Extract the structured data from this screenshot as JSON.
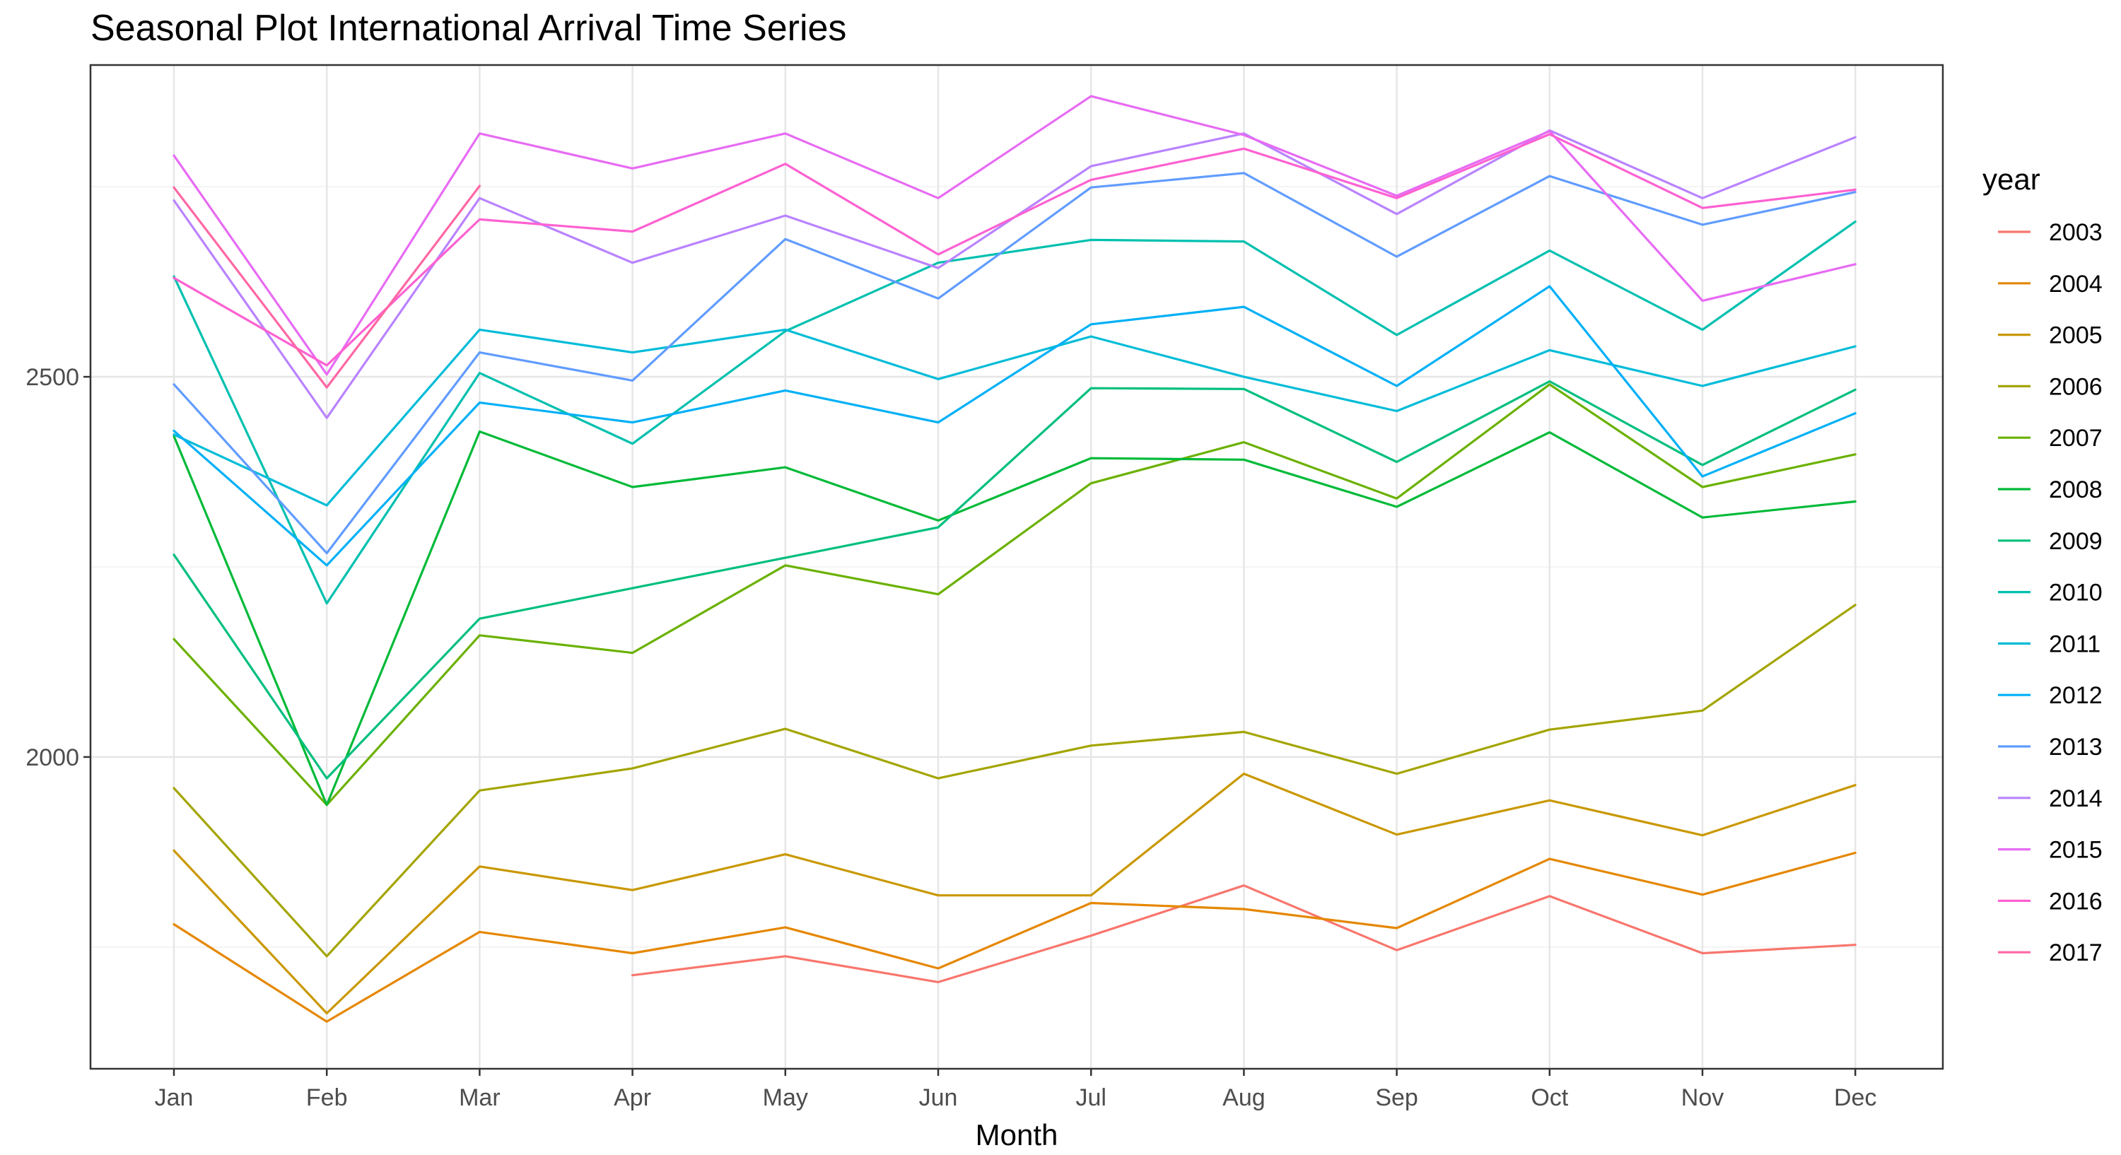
{
  "chart_data": {
    "type": "line",
    "title": "Seasonal Plot International Arrival Time Series",
    "xlabel": "Month",
    "ylabel": "",
    "categories": [
      "Jan",
      "Feb",
      "Mar",
      "Apr",
      "May",
      "Jun",
      "Jul",
      "Aug",
      "Sep",
      "Oct",
      "Nov",
      "Dec"
    ],
    "ylim": [
      1590,
      2910
    ],
    "yticks": [
      2000,
      2500
    ],
    "ygrid_minor": [
      1750,
      2250,
      2750
    ],
    "grid": true,
    "legend_title": "year",
    "legend_position": "right",
    "series": [
      {
        "name": "2003",
        "color": "#F8766D",
        "values": [
          null,
          null,
          null,
          1713,
          1738,
          1704,
          1765,
          1831,
          1746,
          1817,
          1742,
          1753
        ]
      },
      {
        "name": "2004",
        "color": "#E58700",
        "values": [
          1780,
          1652,
          1770,
          1742,
          1776,
          1722,
          1808,
          1800,
          1775,
          1866,
          1819,
          1874
        ]
      },
      {
        "name": "2005",
        "color": "#C99800",
        "values": [
          1877,
          1663,
          1856,
          1825,
          1872,
          1818,
          1818,
          1978,
          1898,
          1943,
          1897,
          1963
        ]
      },
      {
        "name": "2006",
        "color": "#A3A500",
        "values": [
          1959,
          1738,
          1956,
          1985,
          2037,
          1972,
          2015,
          2033,
          1978,
          2036,
          2061,
          2200
        ]
      },
      {
        "name": "2007",
        "color": "#6BB100",
        "values": [
          2155,
          1937,
          2160,
          2137,
          2252,
          2214,
          2360,
          2414,
          2340,
          2490,
          2355,
          2398
        ]
      },
      {
        "name": "2008",
        "color": "#00BA38",
        "values": [
          2422,
          1937,
          2428,
          2355,
          2381,
          2311,
          2393,
          2391,
          2329,
          2427,
          2315,
          2336
        ]
      },
      {
        "name": "2009",
        "color": "#00BF7D",
        "values": [
          2266,
          1972,
          2182,
          2222,
          2262,
          2302,
          2485,
          2484,
          2388,
          2494,
          2384,
          2483
        ]
      },
      {
        "name": "2010",
        "color": "#00C0AF",
        "values": [
          2632,
          2202,
          2505,
          2412,
          2560,
          2650,
          2680,
          2678,
          2555,
          2666,
          2562,
          2704
        ]
      },
      {
        "name": "2011",
        "color": "#00BCD8",
        "values": [
          2424,
          2331,
          2562,
          2532,
          2562,
          2497,
          2553,
          2500,
          2455,
          2535,
          2488,
          2540
        ]
      },
      {
        "name": "2012",
        "color": "#00B0F6",
        "values": [
          2429,
          2252,
          2466,
          2440,
          2482,
          2440,
          2569,
          2592,
          2488,
          2619,
          2369,
          2452
        ]
      },
      {
        "name": "2013",
        "color": "#619CFF",
        "values": [
          2490,
          2268,
          2532,
          2495,
          2681,
          2603,
          2749,
          2768,
          2658,
          2764,
          2700,
          2743
        ]
      },
      {
        "name": "2014",
        "color": "#B983FF",
        "values": [
          2732,
          2446,
          2735,
          2650,
          2712,
          2643,
          2777,
          2820,
          2714,
          2824,
          2735,
          2815
        ]
      },
      {
        "name": "2015",
        "color": "#E76BF3",
        "values": [
          2791,
          2503,
          2820,
          2774,
          2820,
          2735,
          2869,
          2818,
          2738,
          2823,
          2600,
          2648
        ]
      },
      {
        "name": "2016",
        "color": "#FD61D1",
        "values": [
          2630,
          2515,
          2707,
          2691,
          2780,
          2661,
          2759,
          2800,
          2735,
          2819,
          2722,
          2746
        ]
      },
      {
        "name": "2017",
        "color": "#FF67A4",
        "values": [
          2749,
          2486,
          2751,
          null,
          null,
          null,
          null,
          null,
          null,
          null,
          null,
          null
        ]
      }
    ]
  }
}
